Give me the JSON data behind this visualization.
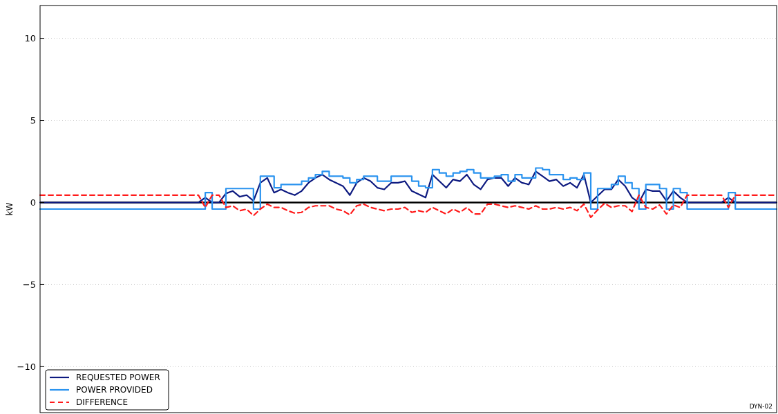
{
  "chart_data": {
    "type": "line",
    "ylabel": "kW",
    "categories": [
      null,
      null,
      null,
      null,
      null,
      null,
      null,
      null,
      null,
      null,
      null,
      null,
      null,
      null,
      null,
      null,
      null,
      null,
      null,
      null,
      null,
      null,
      null,
      null,
      null,
      null,
      null,
      null,
      null,
      null,
      null,
      null,
      null,
      null,
      null,
      null,
      null,
      null,
      null,
      null,
      null,
      null,
      null,
      null,
      null,
      null,
      null,
      null,
      null,
      null,
      null,
      null,
      null,
      null,
      null,
      null,
      null,
      null,
      null,
      null,
      null,
      null,
      null,
      null,
      null,
      null,
      null,
      null,
      null,
      null,
      null,
      null,
      null,
      null,
      null,
      null,
      null,
      null,
      null,
      null,
      null,
      null,
      null,
      null,
      null,
      null,
      null,
      null,
      null,
      null,
      null,
      null,
      null,
      null,
      null,
      null,
      null,
      null,
      null,
      null,
      null,
      null,
      null,
      null,
      null,
      null,
      null,
      null
    ],
    "series": [
      {
        "name": "REQUESTED POWER",
        "color": "#0d1a80",
        "values": [
          0,
          0,
          0,
          0,
          0,
          0,
          0,
          0,
          0,
          0,
          0,
          0,
          0,
          0,
          0,
          0,
          0,
          0,
          0,
          0,
          0,
          0,
          0,
          0,
          0.3,
          0,
          0,
          0.55,
          0.7,
          0.35,
          0.45,
          0.1,
          1.2,
          1.5,
          0.6,
          0.8,
          0.6,
          0.45,
          0.7,
          1.2,
          1.5,
          1.7,
          1.4,
          1.2,
          1.0,
          0.45,
          1.2,
          1.5,
          1.3,
          0.9,
          0.8,
          1.2,
          1.2,
          1.3,
          0.7,
          0.5,
          0.3,
          1.7,
          1.3,
          0.9,
          1.4,
          1.3,
          1.7,
          1.1,
          0.8,
          1.4,
          1.5,
          1.5,
          1.0,
          1.5,
          1.2,
          1.1,
          1.9,
          1.6,
          1.3,
          1.4,
          1.0,
          1.2,
          0.9,
          1.7,
          0,
          0.4,
          0.8,
          0.8,
          1.4,
          1.0,
          0.3,
          0,
          0.8,
          0.7,
          0.7,
          0.1,
          0.7,
          0.3,
          0,
          0,
          0,
          0,
          0,
          0,
          0.3,
          0,
          0,
          0,
          0,
          0,
          0,
          0
        ]
      },
      {
        "name": "POWER PROVIDED",
        "type": "step",
        "color": "#2a93ef",
        "values": [
          -0.4,
          -0.4,
          -0.4,
          -0.4,
          -0.4,
          -0.4,
          -0.4,
          -0.4,
          -0.4,
          -0.4,
          -0.4,
          -0.4,
          -0.4,
          -0.4,
          -0.4,
          -0.4,
          -0.4,
          -0.4,
          -0.4,
          -0.4,
          -0.4,
          -0.4,
          -0.4,
          -0.4,
          0.6,
          -0.4,
          -0.4,
          0.85,
          0.85,
          0.85,
          0.85,
          -0.4,
          1.6,
          1.6,
          0.9,
          1.1,
          1.1,
          1.1,
          1.3,
          1.5,
          1.7,
          1.9,
          1.6,
          1.6,
          1.5,
          1.2,
          1.4,
          1.6,
          1.6,
          1.3,
          1.3,
          1.6,
          1.6,
          1.6,
          1.3,
          1.0,
          0.9,
          2.0,
          1.8,
          1.6,
          1.8,
          1.9,
          2.0,
          1.8,
          1.5,
          1.5,
          1.6,
          1.7,
          1.3,
          1.7,
          1.5,
          1.5,
          2.1,
          2.0,
          1.7,
          1.7,
          1.4,
          1.5,
          1.4,
          1.8,
          -0.4,
          0.85,
          0.85,
          1.1,
          1.6,
          1.2,
          0.85,
          -0.4,
          1.1,
          1.1,
          0.85,
          -0.4,
          0.85,
          0.6,
          -0.4,
          -0.4,
          -0.4,
          -0.4,
          -0.4,
          -0.4,
          0.6,
          -0.4,
          -0.4,
          -0.4,
          -0.4,
          -0.4,
          -0.4,
          -0.4
        ]
      },
      {
        "name": "DIFFERENCE",
        "line_style": "dashed",
        "color": "#ff1a1a",
        "values": [
          0.45,
          0.45,
          0.45,
          0.45,
          0.45,
          0.45,
          0.45,
          0.45,
          0.45,
          0.45,
          0.45,
          0.45,
          0.45,
          0.45,
          0.45,
          0.45,
          0.45,
          0.45,
          0.45,
          0.45,
          0.45,
          0.45,
          0.45,
          0.45,
          -0.3,
          0.45,
          0.45,
          -0.3,
          -0.2,
          -0.5,
          -0.4,
          -0.8,
          -0.4,
          -0.1,
          -0.3,
          -0.3,
          -0.5,
          -0.65,
          -0.6,
          -0.3,
          -0.2,
          -0.2,
          -0.2,
          -0.4,
          -0.5,
          -0.75,
          -0.2,
          -0.1,
          -0.3,
          -0.4,
          -0.5,
          -0.4,
          -0.4,
          -0.3,
          -0.6,
          -0.5,
          -0.6,
          -0.3,
          -0.5,
          -0.7,
          -0.4,
          -0.6,
          -0.3,
          -0.7,
          -0.7,
          -0.1,
          -0.1,
          -0.2,
          -0.3,
          -0.2,
          -0.3,
          -0.4,
          -0.2,
          -0.4,
          -0.4,
          -0.3,
          -0.4,
          -0.3,
          -0.5,
          -0.1,
          -0.9,
          -0.45,
          -0.05,
          -0.3,
          -0.2,
          -0.2,
          -0.55,
          0.45,
          -0.3,
          -0.4,
          -0.15,
          -0.7,
          -0.15,
          -0.3,
          0.45,
          0.45,
          0.45,
          0.45,
          0.45,
          0.45,
          -0.3,
          0.45,
          0.45,
          0.45,
          0.45,
          0.45,
          0.45,
          0.45
        ]
      }
    ],
    "ylim": [
      -12.8,
      12
    ],
    "yticks": [
      -10,
      -5,
      0,
      5,
      10
    ],
    "grid": "y",
    "tick_labels": "y",
    "legend": "bottom left",
    "ref_lines": [
      {
        "axis": "y",
        "value": 0,
        "color": "#000000"
      }
    ],
    "annotations": [
      "DYN-02"
    ]
  }
}
